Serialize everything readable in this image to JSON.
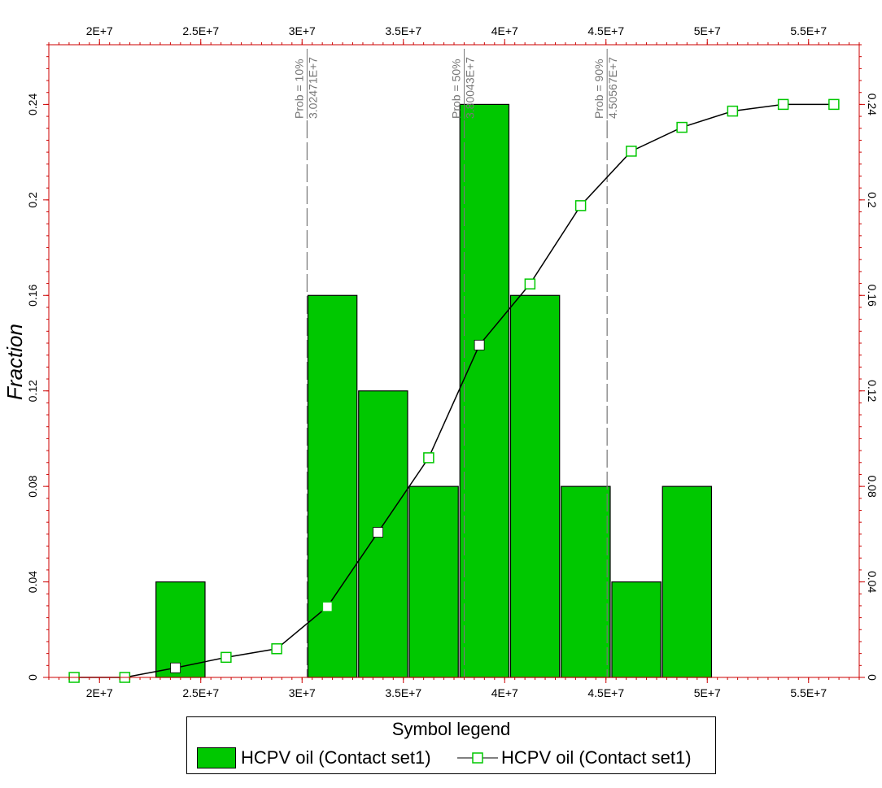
{
  "chart_data": {
    "type": "bar",
    "ylabel": "Fraction",
    "xlim": [
      17500000,
      57500000
    ],
    "ylim": [
      0,
      0.265
    ],
    "x_ticks": [
      20000000,
      25000000,
      30000000,
      35000000,
      40000000,
      45000000,
      50000000,
      55000000
    ],
    "x_tick_labels": [
      "2E+7",
      "2.5E+7",
      "3E+7",
      "3.5E+7",
      "4E+7",
      "4.5E+7",
      "5E+7",
      "5.5E+7"
    ],
    "y_ticks": [
      0,
      0.04,
      0.08,
      0.12,
      0.16,
      0.2,
      0.24
    ],
    "y_tick_labels": [
      "0",
      "0.04",
      "0.08",
      "0.12",
      "0.16",
      "0.2",
      "0.24"
    ],
    "bars": [
      {
        "x0": 22750000,
        "x1": 25250000,
        "value": 0.04
      },
      {
        "x0": 30250000,
        "x1": 32750000,
        "value": 0.16
      },
      {
        "x0": 32750000,
        "x1": 35250000,
        "value": 0.12
      },
      {
        "x0": 35250000,
        "x1": 37750000,
        "value": 0.08
      },
      {
        "x0": 37750000,
        "x1": 40250000,
        "value": 0.24
      },
      {
        "x0": 40250000,
        "x1": 42750000,
        "value": 0.16
      },
      {
        "x0": 42750000,
        "x1": 45250000,
        "value": 0.08
      },
      {
        "x0": 45250000,
        "x1": 47750000,
        "value": 0.04
      },
      {
        "x0": 47750000,
        "x1": 50250000,
        "value": 0.08
      }
    ],
    "cumulative_line": {
      "x": [
        18750000,
        21250000,
        23750000,
        26250000,
        28750000,
        31250000,
        33750000,
        36250000,
        38750000,
        41250000,
        43750000,
        46250000,
        48750000,
        51250000,
        53750000,
        56250000
      ],
      "values": [
        0,
        0,
        0.004,
        0.0084,
        0.012,
        0.0296,
        0.0608,
        0.092,
        0.1392,
        0.1648,
        0.1976,
        0.2204,
        0.2304,
        0.2372,
        0.24,
        0.24
      ],
      "filled_markers": [
        false,
        false,
        true,
        false,
        false,
        false,
        true,
        false,
        true,
        false,
        false,
        false,
        false,
        false,
        false,
        false
      ]
    },
    "annotations": [
      {
        "x": 30247100,
        "line1": "Prob = 10%",
        "line2": "3.02471E+7"
      },
      {
        "x": 38004300,
        "line1": "Prob = 50%",
        "line2": "3.80043E+7"
      },
      {
        "x": 45056700,
        "line1": "Prob = 90%",
        "line2": "4.50567E+7"
      }
    ],
    "colors": {
      "bar": "#00c800",
      "marker": "#00c800",
      "line": "#000000",
      "frame": "#cc0000",
      "annotation": "#777777"
    },
    "legend": {
      "title": "Symbol legend",
      "placement": "bottom",
      "entries": [
        {
          "kind": "bar",
          "label": "HCPV oil (Contact set1)"
        },
        {
          "kind": "line",
          "label": "HCPV oil (Contact set1)"
        }
      ]
    }
  }
}
